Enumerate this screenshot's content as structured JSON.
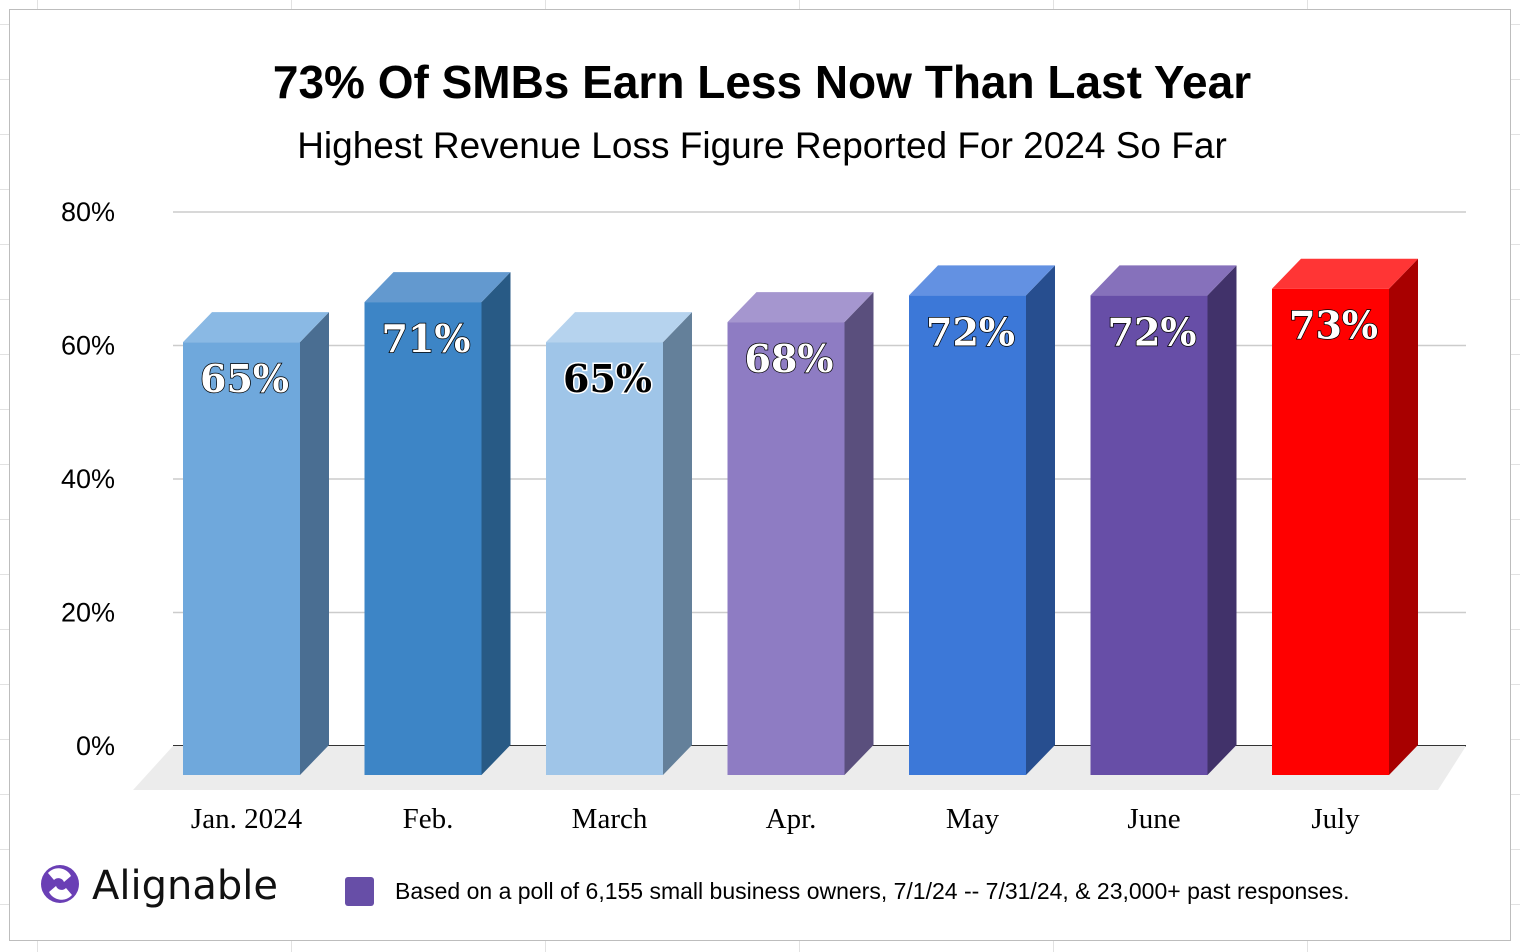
{
  "chart_data": {
    "type": "bar",
    "title": "73% Of SMBs Earn Less Now Than Last Year",
    "subtitle": "Highest Revenue Loss Figure Reported For 2024 So Far",
    "categories": [
      "Jan. 2024",
      "Feb.",
      "March",
      "Apr.",
      "May",
      "June",
      "July"
    ],
    "values": [
      65,
      71,
      65,
      68,
      72,
      72,
      73
    ],
    "data_labels": [
      "65%",
      "71%",
      "65%",
      "68%",
      "72%",
      "72%",
      "73%"
    ],
    "yticks": [
      "0%",
      "20%",
      "40%",
      "60%",
      "80%"
    ],
    "ylim": [
      0,
      80
    ],
    "grid": true,
    "style": "3d-bar",
    "bar_colors": [
      "#6fa8dc",
      "#3d85c6",
      "#9fc5e8",
      "#8e7cc3",
      "#3c78d8",
      "#674ea7",
      "#ff0000"
    ],
    "side_colors": [
      "#4a6e92",
      "#285a85",
      "#64809a",
      "#5a4f7d",
      "#274e8f",
      "#41326a",
      "#a80000"
    ],
    "top_colors": [
      "#8ab9e4",
      "#6399cf",
      "#b6d3ee",
      "#a596cf",
      "#6391e2",
      "#8671bb",
      "#ff3535"
    ],
    "label_colors": [
      "#ffffff",
      "#ffffff",
      "#000000",
      "#ffffff",
      "#ffffff",
      "#ffffff",
      "#ffffff"
    ]
  },
  "footer": {
    "brand": "Alignable",
    "legend_color": "#674ea7",
    "note": "Based on a poll of 6,155 small business owners, 7/1/24 -- 7/31/24, & 23,000+ past responses."
  }
}
